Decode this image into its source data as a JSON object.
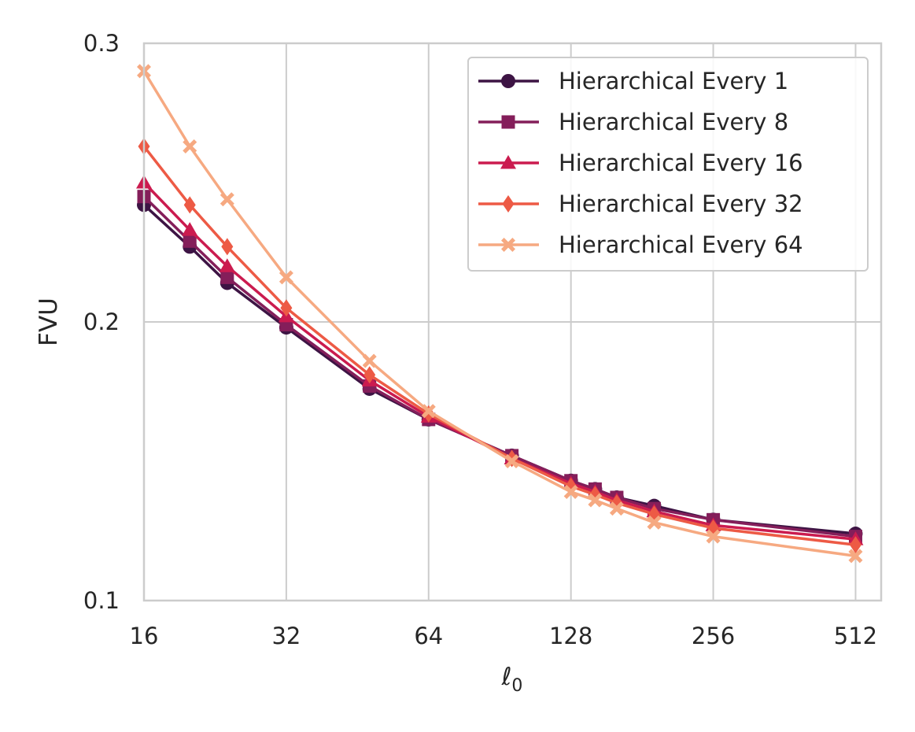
{
  "chart_data": {
    "type": "line",
    "title": "",
    "xlabel": "ℓ",
    "xlabel_subscript": "0",
    "ylabel": "FVU",
    "xscale": "log2",
    "xlim": [
      16,
      580
    ],
    "ylim": [
      0.1,
      0.3
    ],
    "xticks": [
      16,
      32,
      64,
      128,
      256,
      512
    ],
    "xtick_labels": [
      "16",
      "32",
      "64",
      "128",
      "256",
      "512"
    ],
    "yticks": [
      0.1,
      0.2,
      0.3
    ],
    "ytick_labels": [
      "0.1",
      "0.2",
      "0.3"
    ],
    "grid": true,
    "legend_position": "top-right",
    "x": [
      16,
      20,
      24,
      32,
      48,
      64,
      96,
      128,
      144,
      160,
      192,
      256,
      512
    ],
    "series": [
      {
        "name": "Hierarchical Every 1",
        "color": "#3d1444",
        "marker": "circle",
        "values": [
          0.242,
          0.227,
          0.214,
          0.198,
          0.176,
          0.165,
          0.152,
          0.143,
          0.14,
          0.137,
          0.134,
          0.129,
          0.124
        ]
      },
      {
        "name": "Hierarchical Every 8",
        "color": "#841e5a",
        "marker": "square",
        "values": [
          0.245,
          0.229,
          0.216,
          0.199,
          0.177,
          0.165,
          0.152,
          0.143,
          0.14,
          0.137,
          0.133,
          0.129,
          0.123
        ]
      },
      {
        "name": "Hierarchical Every 16",
        "color": "#cb1b4f",
        "marker": "triangle",
        "values": [
          0.25,
          0.233,
          0.22,
          0.202,
          0.179,
          0.166,
          0.151,
          0.142,
          0.139,
          0.136,
          0.132,
          0.127,
          0.122
        ]
      },
      {
        "name": "Hierarchical Every 32",
        "color": "#ed5a45",
        "marker": "diamond",
        "values": [
          0.263,
          0.242,
          0.227,
          0.205,
          0.181,
          0.167,
          0.151,
          0.141,
          0.138,
          0.135,
          0.131,
          0.126,
          0.12
        ]
      },
      {
        "name": "Hierarchical Every 64",
        "color": "#f6a981",
        "marker": "x",
        "values": [
          0.29,
          0.263,
          0.244,
          0.216,
          0.186,
          0.168,
          0.15,
          0.139,
          0.136,
          0.133,
          0.128,
          0.123,
          0.116
        ]
      }
    ]
  }
}
